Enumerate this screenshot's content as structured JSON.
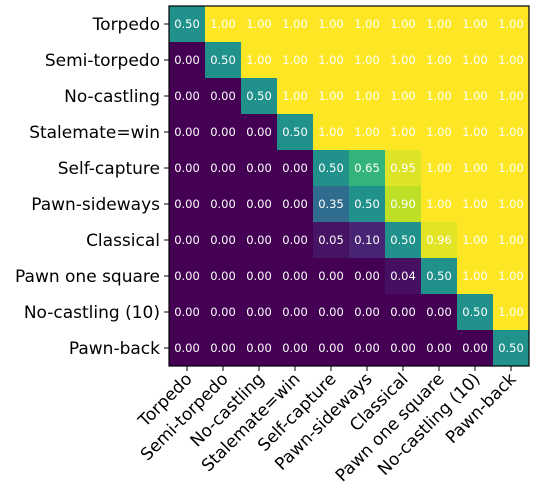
{
  "chart_data": {
    "type": "heatmap",
    "title": "",
    "xlabel": "",
    "ylabel": "",
    "colormap": "viridis",
    "value_range": [
      0,
      1
    ],
    "rows": [
      "Torpedo",
      "Semi-torpedo",
      "No-castling",
      "Stalemate=win",
      "Self-capture",
      "Pawn-sideways",
      "Classical",
      "Pawn one square",
      "No-castling (10)",
      "Pawn-back"
    ],
    "columns": [
      "Torpedo",
      "Semi-torpedo",
      "No-castling",
      "Stalemate=win",
      "Self-capture",
      "Pawn-sideways",
      "Classical",
      "Pawn one square",
      "No-castling (10)",
      "Pawn-back"
    ],
    "values": [
      [
        0.5,
        1.0,
        1.0,
        1.0,
        1.0,
        1.0,
        1.0,
        1.0,
        1.0,
        1.0
      ],
      [
        0.0,
        0.5,
        1.0,
        1.0,
        1.0,
        1.0,
        1.0,
        1.0,
        1.0,
        1.0
      ],
      [
        0.0,
        0.0,
        0.5,
        1.0,
        1.0,
        1.0,
        1.0,
        1.0,
        1.0,
        1.0
      ],
      [
        0.0,
        0.0,
        0.0,
        0.5,
        1.0,
        1.0,
        1.0,
        1.0,
        1.0,
        1.0
      ],
      [
        0.0,
        0.0,
        0.0,
        0.0,
        0.5,
        0.65,
        0.95,
        1.0,
        1.0,
        1.0
      ],
      [
        0.0,
        0.0,
        0.0,
        0.0,
        0.35,
        0.5,
        0.9,
        1.0,
        1.0,
        1.0
      ],
      [
        0.0,
        0.0,
        0.0,
        0.0,
        0.05,
        0.1,
        0.5,
        0.96,
        1.0,
        1.0
      ],
      [
        0.0,
        0.0,
        0.0,
        0.0,
        0.0,
        0.0,
        0.04,
        0.5,
        1.0,
        1.0
      ],
      [
        0.0,
        0.0,
        0.0,
        0.0,
        0.0,
        0.0,
        0.0,
        0.0,
        0.5,
        1.0
      ],
      [
        0.0,
        0.0,
        0.0,
        0.0,
        0.0,
        0.0,
        0.0,
        0.0,
        0.0,
        0.5
      ]
    ],
    "cell_label_format": "0.00",
    "grid": false,
    "legend": "none"
  }
}
